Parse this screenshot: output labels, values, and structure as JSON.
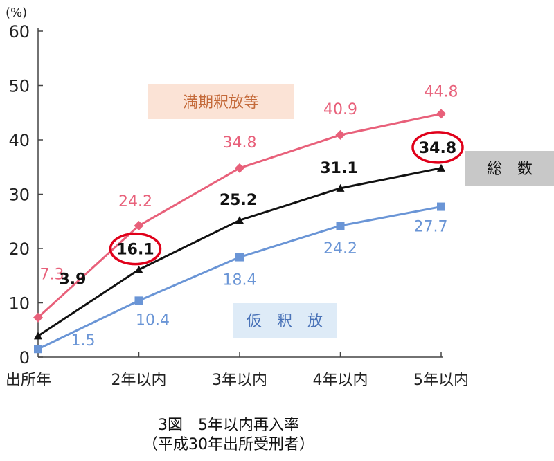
{
  "chart_data": {
    "type": "line",
    "unit_label": "(%)",
    "x": [
      "出所年",
      "2年以内",
      "3年以内",
      "4年以内",
      "5年以内"
    ],
    "ylim": [
      0,
      60
    ],
    "yticks": [
      0,
      10,
      20,
      30,
      40,
      50,
      60
    ],
    "grid": false,
    "series": [
      {
        "name": "満期釈放等",
        "values": [
          7.3,
          24.2,
          34.8,
          40.9,
          44.8
        ],
        "labels": [
          "7.3",
          "24.2",
          "34.8",
          "40.9",
          "44.8"
        ],
        "color": "#e8607a",
        "label_bg": "#fbe3d6",
        "label_color": "#c46a3a"
      },
      {
        "name": "総　数",
        "values": [
          3.9,
          16.1,
          25.2,
          31.1,
          34.8
        ],
        "labels": [
          "3.9",
          "16.1",
          "25.2",
          "31.1",
          "34.8"
        ],
        "color": "#111111",
        "label_bg": "#c8c8c8",
        "label_color": "#111111",
        "circled_points": [
          1,
          4
        ]
      },
      {
        "name": "仮　釈　放",
        "values": [
          1.5,
          10.4,
          18.4,
          24.2,
          27.7
        ],
        "labels": [
          "1.5",
          "10.4",
          "18.4",
          "24.2",
          "27.7"
        ],
        "color": "#6a95d6",
        "label_bg": "#deebf7",
        "label_color": "#4a73b8"
      }
    ],
    "highlight_color": "#e0001a"
  },
  "caption": {
    "title": "3図　5年以内再入率",
    "subtitle": "（平成30年出所受刑者）"
  }
}
